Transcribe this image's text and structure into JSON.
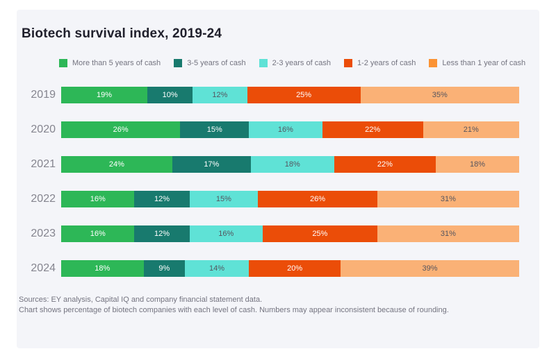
{
  "page": {
    "title": "Biotech survival index, 2019-24",
    "footer": {
      "line1": "Sources: EY analysis, Capital IQ and company financial statement data.",
      "line2": "Chart shows percentage of biotech companies with each level of cash. Numbers may appear inconsistent because of rounding."
    }
  },
  "colors": {
    "panel_background": "#f4f5f9",
    "title_text": "#20202c",
    "axis_label_text": "#85858f",
    "footer_text": "#747480",
    "dark_segment_label": "#ffffff",
    "light_segment_label": "#55555f"
  },
  "chart_data": {
    "type": "bar",
    "orientation": "horizontal-stacked",
    "title": "Biotech survival index, 2019-24",
    "value_suffix": "%",
    "legend_position": "top",
    "grid": false,
    "categories": [
      "2019",
      "2020",
      "2021",
      "2022",
      "2023",
      "2024"
    ],
    "series": [
      {
        "name": "More than 5 years of cash",
        "color": "#2db757",
        "label_color": "#ffffff",
        "values": [
          19,
          26,
          24,
          16,
          16,
          18
        ]
      },
      {
        "name": "3-5 years of cash",
        "color": "#187a6e",
        "label_color": "#ffffff",
        "values": [
          10,
          15,
          17,
          12,
          12,
          9
        ]
      },
      {
        "name": "2-3 years of cash",
        "color": "#5fe2d6",
        "label_color": "#55555f",
        "values": [
          12,
          16,
          18,
          15,
          16,
          14
        ]
      },
      {
        "name": "1-2 years of cash",
        "color": "#eb4d08",
        "label_color": "#ffffff",
        "values": [
          25,
          22,
          22,
          26,
          25,
          20
        ]
      },
      {
        "name": "Less than 1 year of cash",
        "color": "#fab176",
        "legend_color": "#fb9334",
        "label_color": "#55555f",
        "values": [
          35,
          21,
          18,
          31,
          31,
          39
        ]
      }
    ]
  }
}
